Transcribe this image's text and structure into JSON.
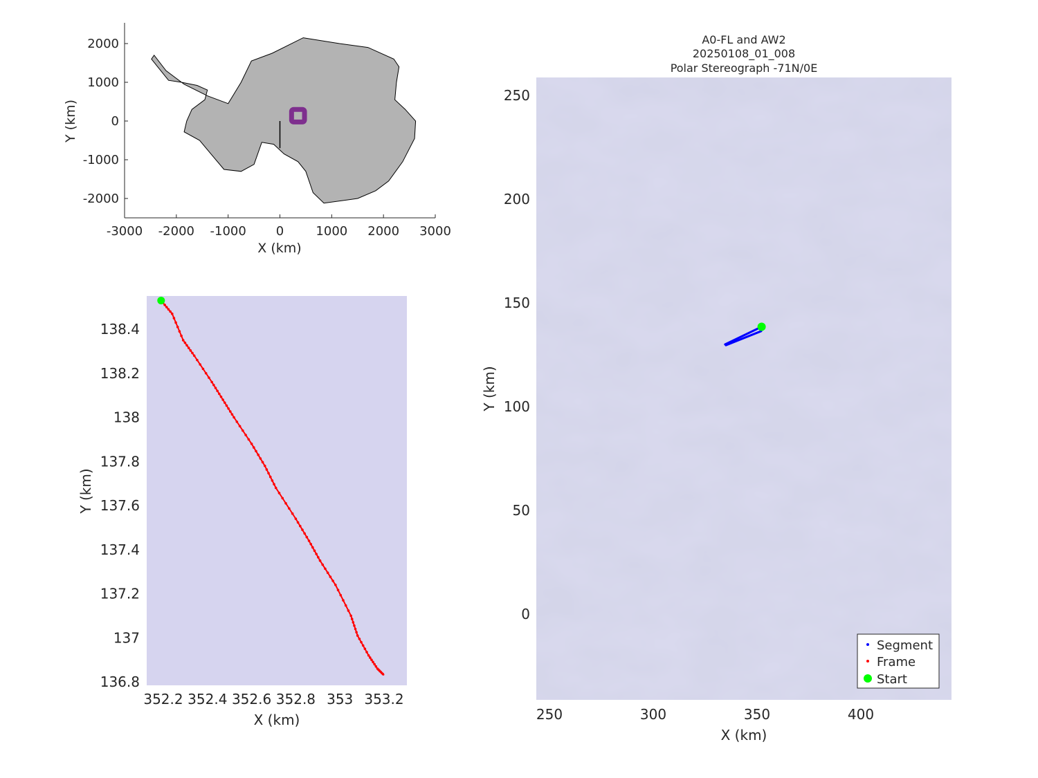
{
  "chart_data": [
    {
      "type": "scatter",
      "name": "overview-map",
      "xlabel": "X (km)",
      "ylabel": "Y (km)",
      "xlim": [
        -3000,
        3000
      ],
      "ylim": [
        -2500,
        2500
      ],
      "xticks": [
        -3000,
        -2000,
        -1000,
        0,
        1000,
        2000,
        3000
      ],
      "xtick_labels": [
        "-3000",
        "-2000",
        "-1000",
        "0",
        "1000",
        "2000",
        "3000"
      ],
      "yticks": [
        2000,
        1000,
        0,
        -1000,
        -2000
      ],
      "ytick_labels": [
        "2000",
        "1000",
        "0",
        "-1000",
        "-2000"
      ],
      "land_color": "#b3b3b3",
      "box_color": "#7e2f8e",
      "box": {
        "xmin": 225,
        "xmax": 475,
        "ymin": -25,
        "ymax": 300
      },
      "outline_km": [
        [
          -2480,
          1600
        ],
        [
          -2330,
          1350
        ],
        [
          -2150,
          1050
        ],
        [
          -1900,
          1000
        ],
        [
          -1600,
          920
        ],
        [
          -1400,
          800
        ],
        [
          -1450,
          550
        ],
        [
          -1700,
          300
        ],
        [
          -1800,
          0
        ],
        [
          -1850,
          -280
        ],
        [
          -1550,
          -500
        ],
        [
          -1300,
          -900
        ],
        [
          -1080,
          -1250
        ],
        [
          -750,
          -1300
        ],
        [
          -500,
          -1120
        ],
        [
          -350,
          -550
        ],
        [
          -120,
          -600
        ],
        [
          80,
          -850
        ],
        [
          350,
          -1050
        ],
        [
          500,
          -1300
        ],
        [
          640,
          -1850
        ],
        [
          850,
          -2120
        ],
        [
          1500,
          -2000
        ],
        [
          1850,
          -1800
        ],
        [
          2100,
          -1550
        ],
        [
          2370,
          -1050
        ],
        [
          2600,
          -450
        ],
        [
          2620,
          0
        ],
        [
          2420,
          300
        ],
        [
          2220,
          550
        ],
        [
          2250,
          1000
        ],
        [
          2300,
          1400
        ],
        [
          2200,
          1600
        ],
        [
          1700,
          1900
        ],
        [
          1150,
          2000
        ],
        [
          450,
          2150
        ],
        [
          -150,
          1750
        ],
        [
          -550,
          1550
        ],
        [
          -750,
          1000
        ],
        [
          -1000,
          450
        ],
        [
          -1400,
          650
        ],
        [
          -1850,
          950
        ],
        [
          -2200,
          1300
        ],
        [
          -2430,
          1700
        ]
      ],
      "line_km": [
        [
          0,
          0
        ],
        [
          0,
          -700
        ]
      ]
    },
    {
      "type": "line",
      "name": "zoom-track",
      "xlabel": "X (km)",
      "ylabel": "Y (km)",
      "xlim": [
        352.1,
        353.3
      ],
      "ylim": [
        136.78,
        138.57
      ],
      "xticks": [
        352.2,
        352.4,
        352.6,
        352.8,
        353,
        353.2
      ],
      "xtick_labels": [
        "352.2",
        "352.4",
        "352.6",
        "352.8",
        "353",
        "353.2"
      ],
      "yticks": [
        138.4,
        138.2,
        138,
        137.8,
        137.6,
        137.4,
        137.2,
        137,
        136.8
      ],
      "ytick_labels": [
        "138.4",
        "138.2",
        "138",
        "137.8",
        "137.6",
        "137.4",
        "137.2",
        "137",
        "136.8"
      ],
      "background": "#d6d4ef",
      "frame_color": "#ff0000",
      "start_color": "#00ff00",
      "start": [
        352.19,
        138.53
      ],
      "frame_x": [
        352.19,
        352.24,
        352.29,
        352.34,
        352.42,
        352.47,
        352.52,
        352.6,
        352.66,
        352.71,
        352.8,
        352.86,
        352.91,
        352.98,
        353.05,
        353.08,
        353.13,
        353.17,
        353.2
      ],
      "frame_y": [
        138.53,
        138.47,
        138.35,
        138.28,
        138.16,
        138.08,
        138.0,
        137.88,
        137.78,
        137.68,
        137.54,
        137.44,
        137.35,
        137.24,
        137.1,
        137.01,
        136.92,
        136.86,
        136.83
      ]
    },
    {
      "type": "line",
      "name": "context-map",
      "title": "A0-FL and AW2",
      "subtitle_1": "20250108_01_008",
      "subtitle_2": "Polar Stereograph -71N/0E",
      "xlabel": "X (km)",
      "ylabel": "Y (km)",
      "xlim": [
        243,
        443
      ],
      "ylim": [
        -41,
        259
      ],
      "xticks": [
        250,
        300,
        350,
        400
      ],
      "xtick_labels": [
        "250",
        "300",
        "350",
        "400"
      ],
      "yticks": [
        250,
        200,
        150,
        100,
        50,
        0
      ],
      "ytick_labels": [
        "250",
        "200",
        "150",
        "100",
        "50",
        "0"
      ],
      "background": "#d9d9ee",
      "segment_color": "#0000ff",
      "frame_color": "#ff0000",
      "start_color": "#00ff00",
      "segment_line_a": [
        [
          352.2,
          138.5
        ],
        [
          334.6,
          130.0
        ]
      ],
      "segment_line_b": [
        [
          352.0,
          136.4
        ],
        [
          335.0,
          129.6
        ]
      ],
      "start": [
        352.2,
        138.5
      ],
      "legend_position": "bottom-right",
      "legend": [
        "Segment",
        "Frame",
        "Start"
      ]
    }
  ]
}
